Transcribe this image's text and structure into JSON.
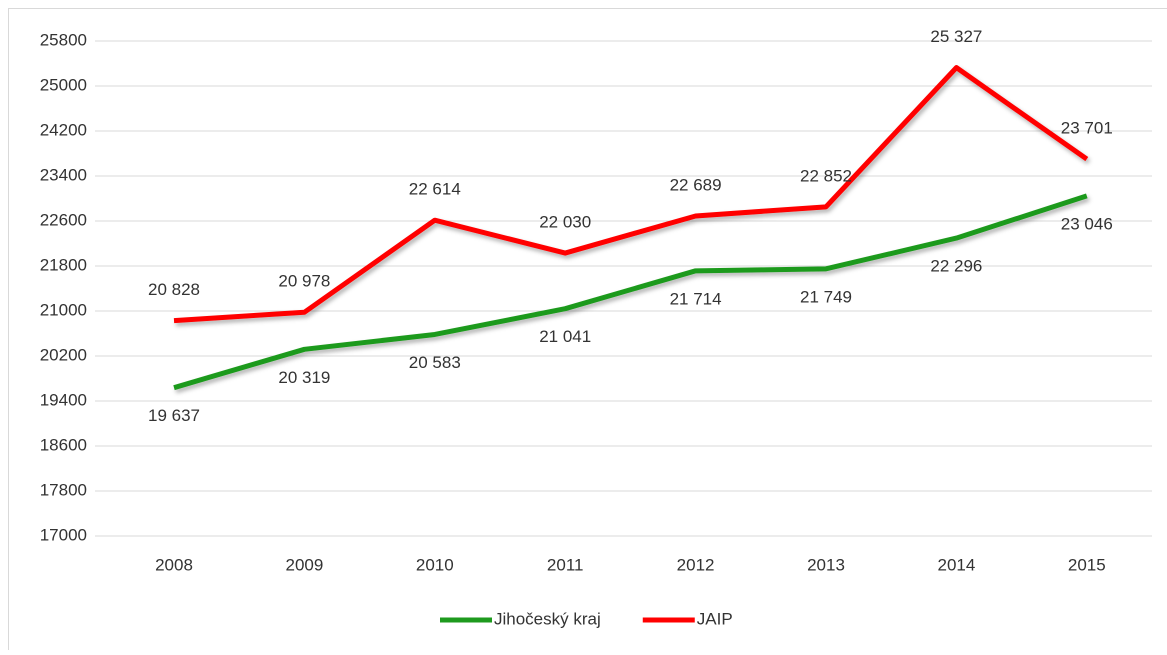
{
  "chart_data": {
    "type": "line",
    "categories": [
      "2008",
      "2009",
      "2010",
      "2011",
      "2012",
      "2013",
      "2014",
      "2015"
    ],
    "series": [
      {
        "name": "Jihočeský kraj",
        "color": "#1e9a1e",
        "values": [
          19637,
          20319,
          20583,
          21041,
          21714,
          21749,
          22296,
          23046
        ],
        "value_labels": [
          "19 637",
          "20 319",
          "20 583",
          "21 041",
          "21 714",
          "21 749",
          "22 296",
          "23 046"
        ]
      },
      {
        "name": "JAIP",
        "color": "#ff0000",
        "values": [
          20828,
          20978,
          22614,
          22030,
          22689,
          22852,
          25327,
          23701
        ],
        "value_labels": [
          "20 828",
          "20 978",
          "22 614",
          "22 030",
          "22 689",
          "22 852",
          "25 327",
          "23 701"
        ]
      }
    ],
    "ylim": [
      17000,
      25800
    ],
    "yticks": [
      17000,
      17800,
      18600,
      19400,
      20200,
      21000,
      21800,
      22600,
      23400,
      24200,
      25000,
      25800
    ],
    "grid": true,
    "legend": "bottom"
  }
}
